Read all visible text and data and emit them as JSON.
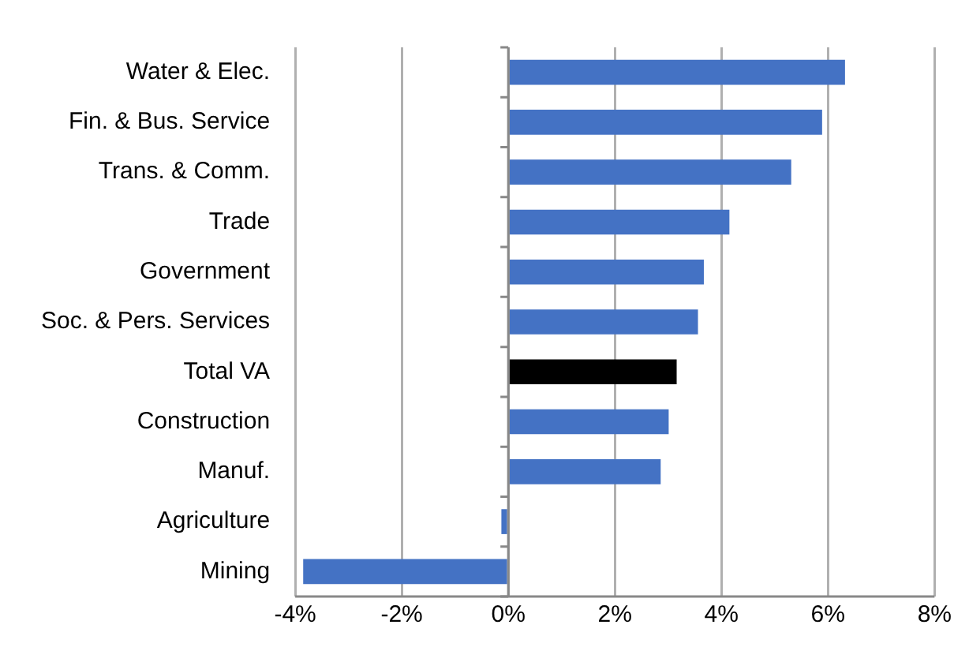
{
  "chart_data": {
    "type": "bar",
    "orientation": "horizontal",
    "categories": [
      "Water & Elec.",
      "Fin. & Bus. Service",
      "Trans. & Comm.",
      "Trade",
      "Government",
      "Soc. & Pers. Services",
      "Total VA",
      "Construction",
      "Manuf.",
      "Agriculture",
      "Mining"
    ],
    "values": [
      6.32,
      5.89,
      5.31,
      4.15,
      3.67,
      3.56,
      3.16,
      3.01,
      2.86,
      -0.13,
      -3.85
    ],
    "colors": [
      "#4472c4",
      "#4472c4",
      "#4472c4",
      "#4472c4",
      "#4472c4",
      "#4472c4",
      "#000000",
      "#4472c4",
      "#4472c4",
      "#4472c4",
      "#4472c4"
    ],
    "xlim": [
      -4,
      8
    ],
    "xticks": [
      {
        "value": -4,
        "label": "-4%"
      },
      {
        "value": -2,
        "label": "-2%"
      },
      {
        "value": 0,
        "label": "0%"
      },
      {
        "value": 2,
        "label": "2%"
      },
      {
        "value": 4,
        "label": "4%"
      },
      {
        "value": 6,
        "label": "6%"
      },
      {
        "value": 8,
        "label": "8%"
      }
    ],
    "grid": "x",
    "legend": false
  }
}
